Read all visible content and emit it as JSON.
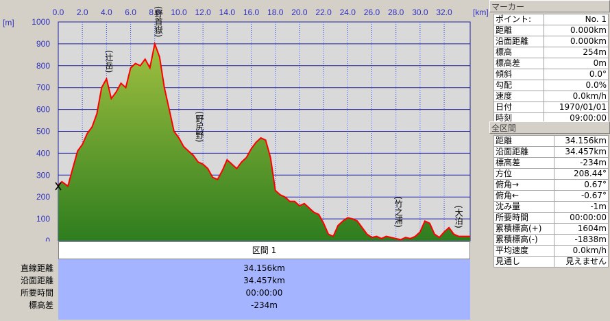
{
  "chart_data": {
    "type": "area",
    "x_unit_label": "[km]",
    "y_unit_label": "[m]",
    "x_ticks": [
      "0.0",
      "2.0",
      "4.0",
      "6.0",
      "8.0",
      "10.0",
      "12.0",
      "14.0",
      "16.0",
      "18.0",
      "20.0",
      "22.0",
      "24.0",
      "26.0",
      "28.0",
      "30.0",
      "32.0"
    ],
    "y_ticks": [
      "1000",
      "900",
      "800",
      "700",
      "600",
      "500",
      "400",
      "300",
      "200",
      "100",
      "0"
    ],
    "xlim": [
      0,
      34.156
    ],
    "ylim": [
      0,
      1000
    ],
    "grid": true,
    "series": [
      {
        "x": [
          0,
          0.3,
          0.8,
          1.2,
          1.6,
          2.0,
          2.4,
          2.8,
          3.2,
          3.6,
          4.0,
          4.4,
          4.8,
          5.2,
          5.6,
          6.0,
          6.4,
          6.8,
          7.2,
          7.6,
          8.0,
          8.4,
          8.8,
          9.2,
          9.6,
          10.0,
          10.4,
          10.8,
          11.2,
          11.6,
          12.0,
          12.4,
          12.8,
          13.2,
          13.6,
          14.0,
          14.4,
          14.8,
          15.2,
          15.6,
          16.0,
          16.4,
          16.8,
          17.2,
          17.6,
          18.0,
          18.4,
          18.8,
          19.2,
          19.6,
          20.0,
          20.4,
          20.8,
          21.2,
          21.6,
          22.0,
          22.4,
          22.8,
          23.2,
          23.6,
          24.0,
          24.4,
          24.8,
          25.2,
          25.6,
          26.0,
          26.4,
          26.8,
          27.2,
          27.6,
          28.0,
          28.4,
          28.8,
          29.2,
          29.6,
          30.0,
          30.4,
          30.8,
          31.2,
          31.6,
          32.0,
          32.4,
          32.8,
          33.2,
          33.6,
          34.156
        ],
        "elevation": [
          254,
          270,
          250,
          330,
          410,
          440,
          490,
          520,
          580,
          700,
          740,
          650,
          680,
          720,
          700,
          790,
          810,
          800,
          830,
          790,
          900,
          840,
          700,
          600,
          500,
          470,
          430,
          410,
          390,
          360,
          350,
          330,
          290,
          280,
          320,
          370,
          350,
          330,
          360,
          380,
          420,
          450,
          470,
          460,
          380,
          230,
          210,
          200,
          180,
          180,
          160,
          170,
          150,
          130,
          120,
          80,
          30,
          20,
          70,
          90,
          105,
          100,
          90,
          60,
          30,
          15,
          20,
          10,
          20,
          15,
          10,
          5,
          15,
          10,
          20,
          40,
          90,
          80,
          30,
          15,
          40,
          60,
          30,
          20,
          20,
          20
        ],
        "line_color": "#ff0000",
        "fill_top_color": "#a0c040",
        "fill_bottom_color": "#2e7d1e"
      }
    ],
    "annotations": [
      {
        "label": "辻岳",
        "x": 4.2,
        "y": 740
      },
      {
        "label": "野首嶽",
        "x": 8.3,
        "y": 900
      },
      {
        "label": "野尻野",
        "x": 11.7,
        "y": 420
      },
      {
        "label": "竹之浦",
        "x": 28.2,
        "y": 30
      },
      {
        "label": "大泊",
        "x": 33.2,
        "y": 30
      }
    ]
  },
  "summary": {
    "header": "区間 1",
    "rows": [
      {
        "label": "直線距離",
        "value": "34.156km"
      },
      {
        "label": "沿面距離",
        "value": "34.457km"
      },
      {
        "label": "所要時間",
        "value": "00:00:00"
      },
      {
        "label": "標高差",
        "value": "-234m"
      }
    ]
  },
  "marker_panel": {
    "title": "マーカー",
    "rows": [
      {
        "label": "ポイント:",
        "value": "No. 1"
      },
      {
        "label": "距離",
        "value": "0.000km"
      },
      {
        "label": "沿面距離",
        "value": "0.000km"
      },
      {
        "label": "標高",
        "value": "254m"
      },
      {
        "label": "標高差",
        "value": "0m"
      },
      {
        "label": "傾斜",
        "value": "0.0°"
      },
      {
        "label": "勾配",
        "value": "0.0%"
      },
      {
        "label": "速度",
        "value": "0.0km/h"
      },
      {
        "label": "日付",
        "value": "1970/01/01"
      },
      {
        "label": "時刻",
        "value": "09:00:00"
      }
    ]
  },
  "total_panel": {
    "title": "全区間",
    "rows": [
      {
        "label": "距離",
        "value": "34.156km"
      },
      {
        "label": "沿面距離",
        "value": "34.457km"
      },
      {
        "label": "標高差",
        "value": "-234m"
      },
      {
        "label": "方位",
        "value": "208.44°"
      },
      {
        "label": "俯角→",
        "value": "0.67°"
      },
      {
        "label": "俯角←",
        "value": "-0.67°"
      },
      {
        "label": "沈み量",
        "value": "-1m"
      },
      {
        "label": "所要時間",
        "value": "00:00:00"
      },
      {
        "label": "累積標高(+)",
        "value": "1604m"
      },
      {
        "label": "累積標高(-)",
        "value": "-1838m"
      },
      {
        "label": "平均速度",
        "value": "0.0km/h"
      },
      {
        "label": "見通し",
        "value": "見えません"
      }
    ]
  }
}
